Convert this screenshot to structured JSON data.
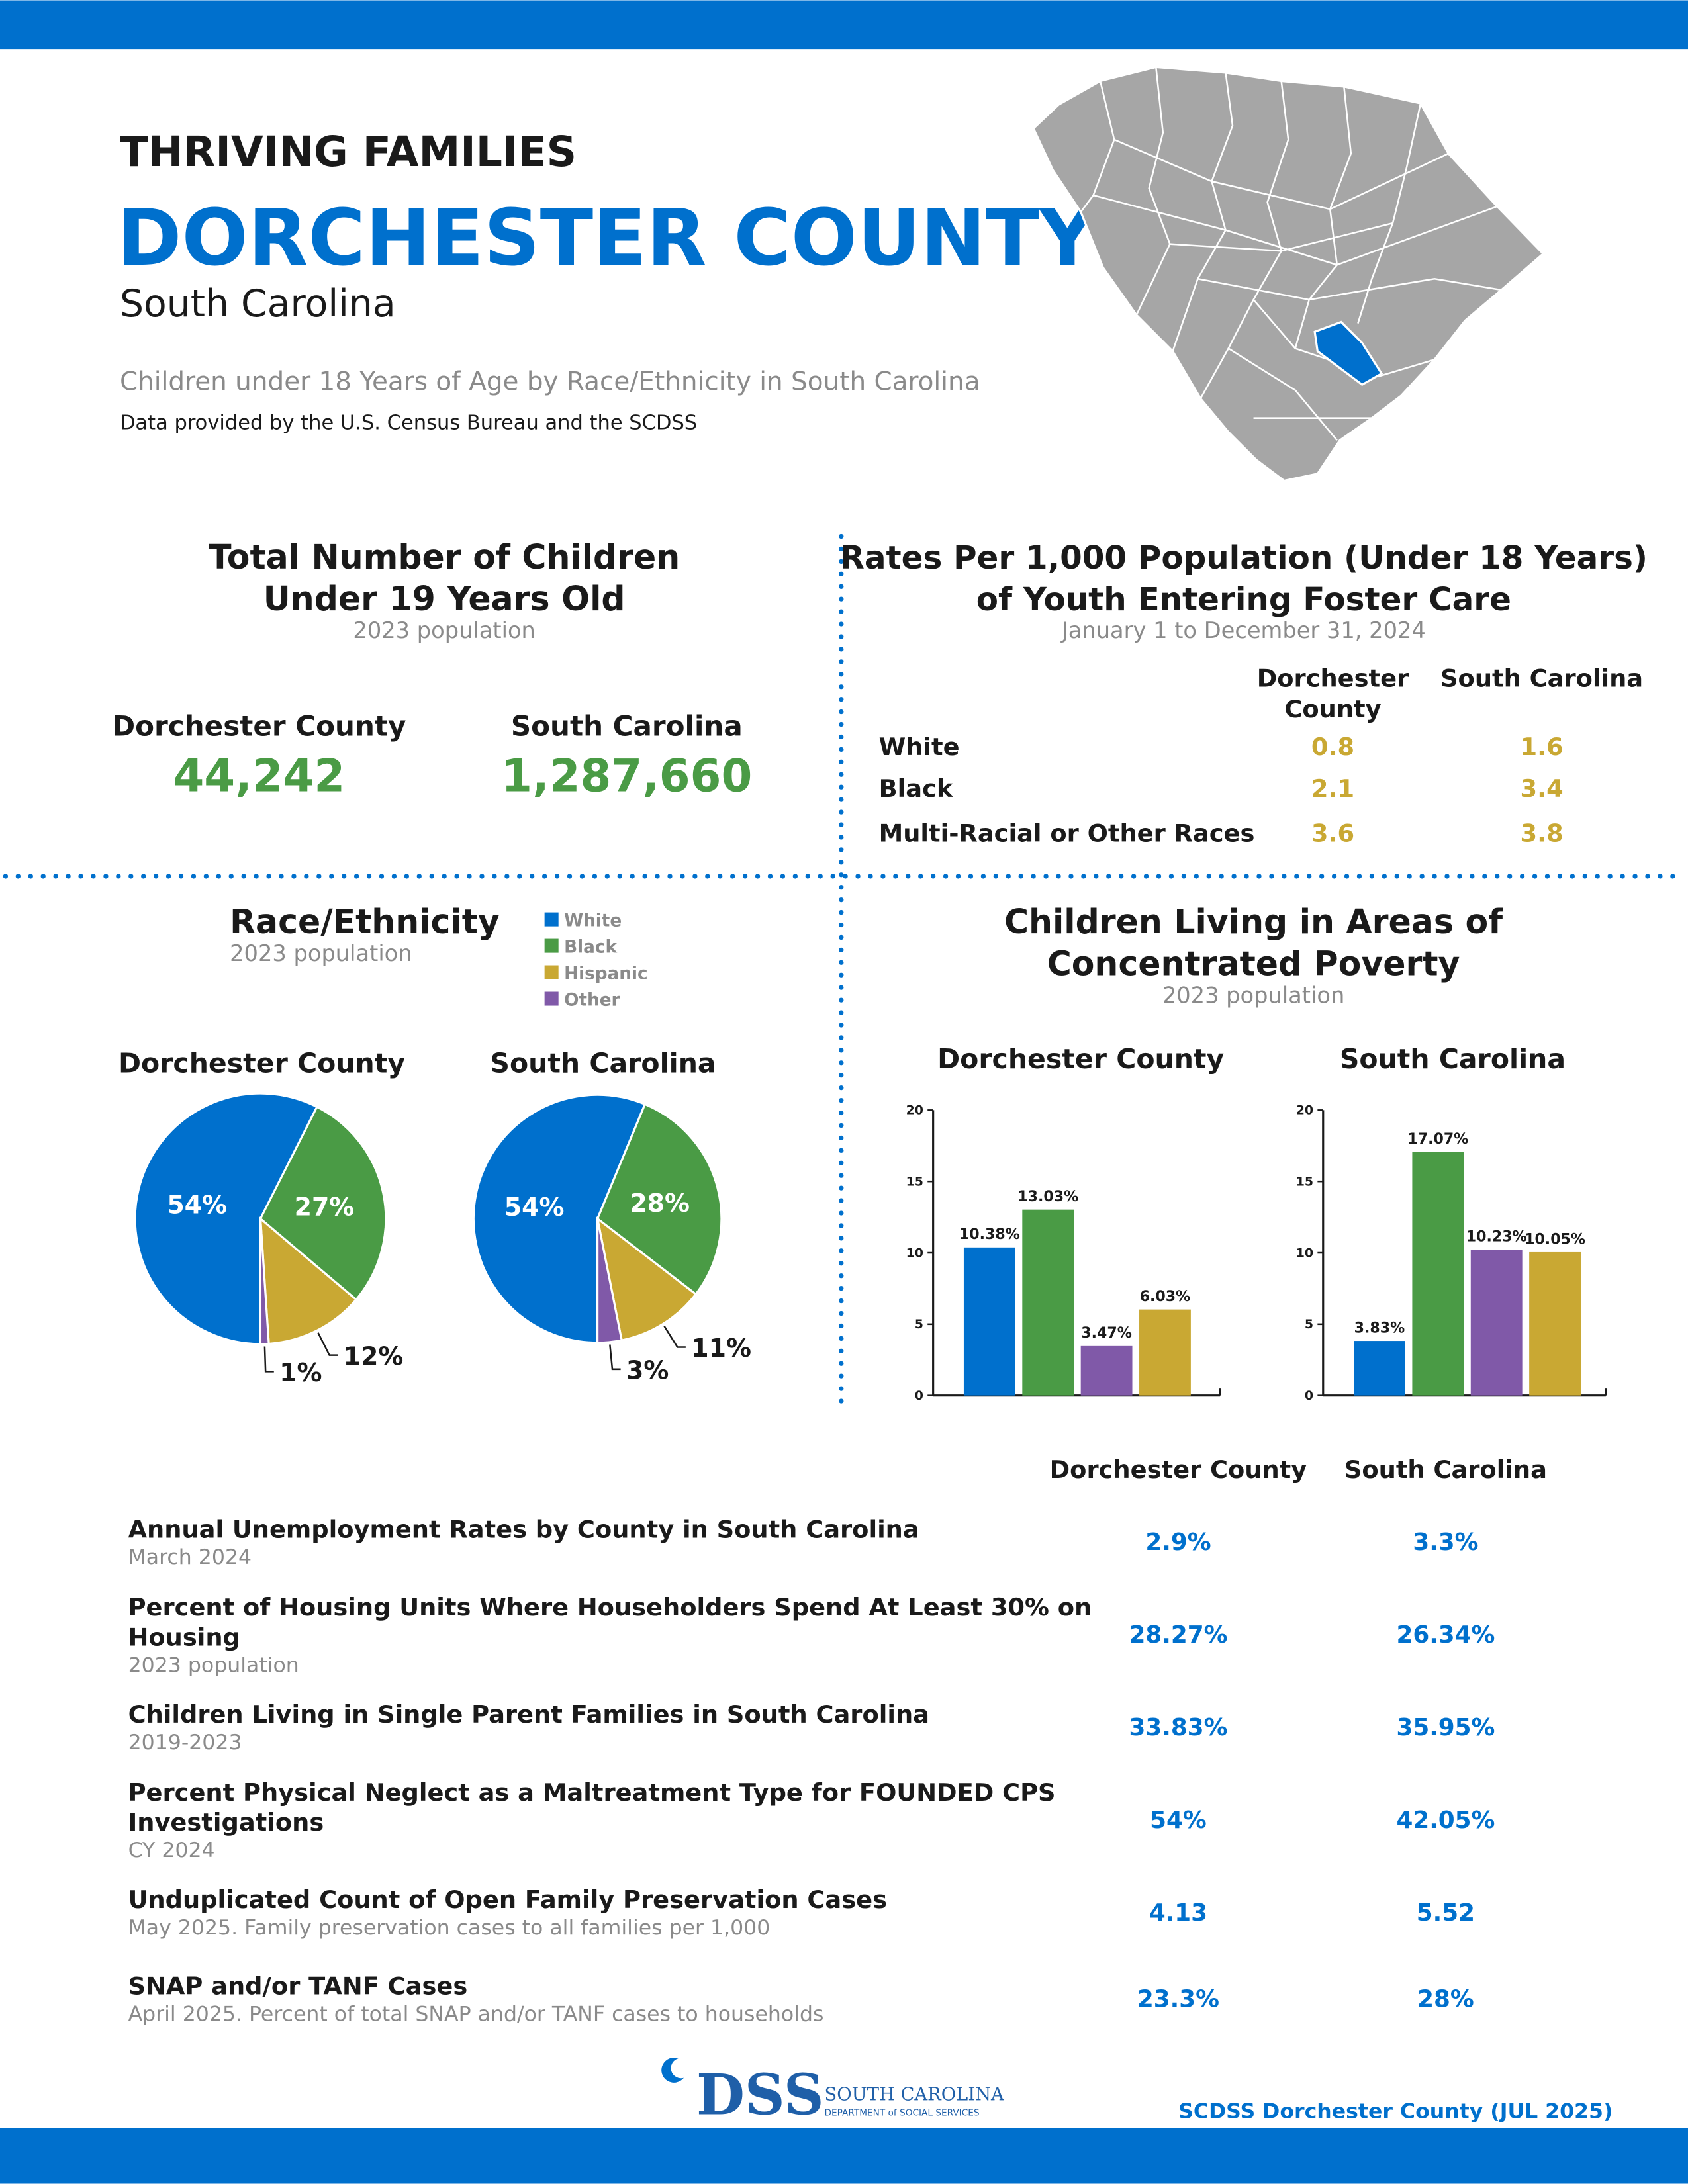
{
  "header": {
    "kicker": "THRIVING FAMILIES",
    "title": "DORCHESTER COUNTY",
    "state": "South Carolina",
    "subtitle": "Children under 18 Years of Age by Race/Ethnicity in South Carolina",
    "source": "Data provided by the U.S. Census Bureau and the SCDSS"
  },
  "totals": {
    "title_lines": [
      "Total Number of Children",
      "Under 19 Years Old"
    ],
    "subtitle": "2023 population",
    "county_label": "Dorchester County",
    "county_value": "44,242",
    "state_label": "South Carolina",
    "state_value": "1,287,660"
  },
  "foster": {
    "title_lines": [
      "Rates Per 1,000 Population (Under 18 Years)",
      "of Youth Entering Foster Care"
    ],
    "subtitle": "January 1 to December 31, 2024",
    "county_header_lines": [
      "Dorchester",
      "County"
    ],
    "state_header": "South Carolina",
    "rows": [
      {
        "label": "White",
        "county": 0.8,
        "state": 1.6
      },
      {
        "label": "Black",
        "county": 2.1,
        "state": 3.4
      },
      {
        "label": "Multi-Racial or Other Races",
        "county": 3.6,
        "state": 3.8
      }
    ]
  },
  "race_section": {
    "title": "Race/Ethnicity",
    "subtitle": "2023 population"
  },
  "poverty_section": {
    "title_lines": [
      "Children Living in Areas of",
      "Concentrated Poverty"
    ],
    "subtitle": "2023 population"
  },
  "chart_data": [
    {
      "type": "pie",
      "title": "Dorchester County",
      "categories": [
        "White",
        "Black",
        "Hispanic",
        "Other"
      ],
      "values": [
        54,
        27,
        12,
        1
      ],
      "value_labels": [
        "54%",
        "27%",
        "12%",
        "1%"
      ],
      "colors": [
        "#0070CD",
        "#4A9B45",
        "#C9A833",
        "#8059A8"
      ]
    },
    {
      "type": "pie",
      "title": "South Carolina",
      "categories": [
        "White",
        "Black",
        "Hispanic",
        "Other"
      ],
      "values": [
        54,
        28,
        11,
        3
      ],
      "value_labels": [
        "54%",
        "28%",
        "11%",
        "3%"
      ],
      "colors": [
        "#0070CD",
        "#4A9B45",
        "#C9A833",
        "#8059A8"
      ]
    },
    {
      "type": "bar",
      "title": "Dorchester County",
      "categories": [
        null,
        null,
        null,
        null
      ],
      "values": [
        10.38,
        13.03,
        3.47,
        6.03
      ],
      "value_labels": [
        "10.38%",
        "13.03%",
        "3.47%",
        "6.03%"
      ],
      "colors": [
        "#0070CD",
        "#4A9B45",
        "#8059A8",
        "#C9A833"
      ],
      "ylim": [
        0,
        20
      ],
      "yticks": [
        0,
        5,
        10,
        15,
        20
      ]
    },
    {
      "type": "bar",
      "title": "South Carolina",
      "categories": [
        null,
        null,
        null,
        null
      ],
      "values": [
        3.83,
        17.07,
        10.23,
        10.05
      ],
      "value_labels": [
        "3.83%",
        "17.07%",
        "10.23%",
        "10.05%"
      ],
      "colors": [
        "#0070CD",
        "#4A9B45",
        "#8059A8",
        "#C9A833"
      ],
      "ylim": [
        0,
        20
      ],
      "yticks": [
        0,
        5,
        10,
        15,
        20
      ]
    }
  ],
  "indicators": {
    "county_header": "Dorchester County",
    "state_header": "South Carolina",
    "rows": [
      {
        "title_lines": [
          "Annual Unemployment Rates by County in South Carolina"
        ],
        "subtitle": "March 2024",
        "county": "2.9%",
        "state": "3.3%"
      },
      {
        "title_lines": [
          "Percent of Housing Units Where Householders Spend At Least 30% on",
          "Housing"
        ],
        "subtitle": "2023 population",
        "county": "28.27%",
        "state": "26.34%"
      },
      {
        "title_lines": [
          "Children Living in Single Parent Families in South Carolina"
        ],
        "subtitle": "2019-2023",
        "county": "33.83%",
        "state": "35.95%"
      },
      {
        "title_lines": [
          "Percent Physical Neglect as a Maltreatment Type for FOUNDED CPS",
          "Investigations"
        ],
        "subtitle": "CY 2024",
        "county": "54%",
        "state": "42.05%"
      },
      {
        "title_lines": [
          "Unduplicated Count of Open Family Preservation Cases"
        ],
        "subtitle": "May 2025. Family preservation cases to all families per 1,000",
        "county": "4.13",
        "state": "5.52"
      },
      {
        "title_lines": [
          "SNAP and/or TANF Cases"
        ],
        "subtitle": "April 2025. Percent of total SNAP and/or TANF cases to households",
        "county": "23.3%",
        "state": "28%"
      }
    ]
  },
  "footer": {
    "logo": "DSS",
    "org_lines": [
      "SOUTH CAROLINA",
      "DEPARTMENT of SOCIAL SERVICES"
    ],
    "credit": "SCDSS Dorchester County (JUL 2025)"
  }
}
